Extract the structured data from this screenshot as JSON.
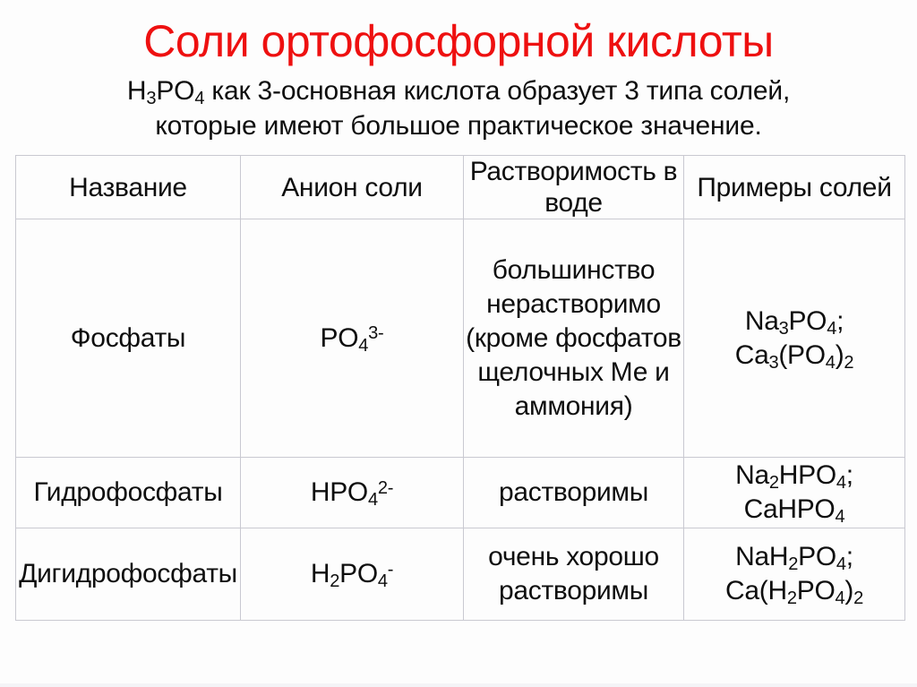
{
  "slide": {
    "title": "Соли ортофосфорной кислоты",
    "subtitle": "H~3~PO~4~ как 3-основная кислота образует 3 типа солей,\nкоторые имеют большое практическое значение."
  },
  "colors": {
    "title_red": "#ee1010",
    "text": "#0e0e0e",
    "table_border": "#c9c9d1",
    "background": "#fdfdfd"
  },
  "table": {
    "headers": [
      "Название",
      "Анион соли",
      "Растворимость в\nводе",
      "Примеры солей"
    ],
    "rows": [
      {
        "name": "Фосфаты",
        "anion": "PO~4~^3-^",
        "solubility": "большинство\nнерастворимо\n(кроме фосфатов\nщелочных Ме и\nаммония)",
        "examples": "Na~3~PO~4~;\nCa~3~(PO~4~)~2~"
      },
      {
        "name": "Гидрофосфаты",
        "anion": "HPO~4~^2-^",
        "solubility": "растворимы",
        "examples": "Na~2~HPO~4~;\nCaHPO~4~"
      },
      {
        "name": "Дигидрофосфаты",
        "anion": "H~2~PO~4~^-^",
        "solubility": "очень хорошо\nрастворимы",
        "examples": "NaH~2~PO~4~;\nCa(H~2~PO~4~)~2~"
      }
    ]
  }
}
